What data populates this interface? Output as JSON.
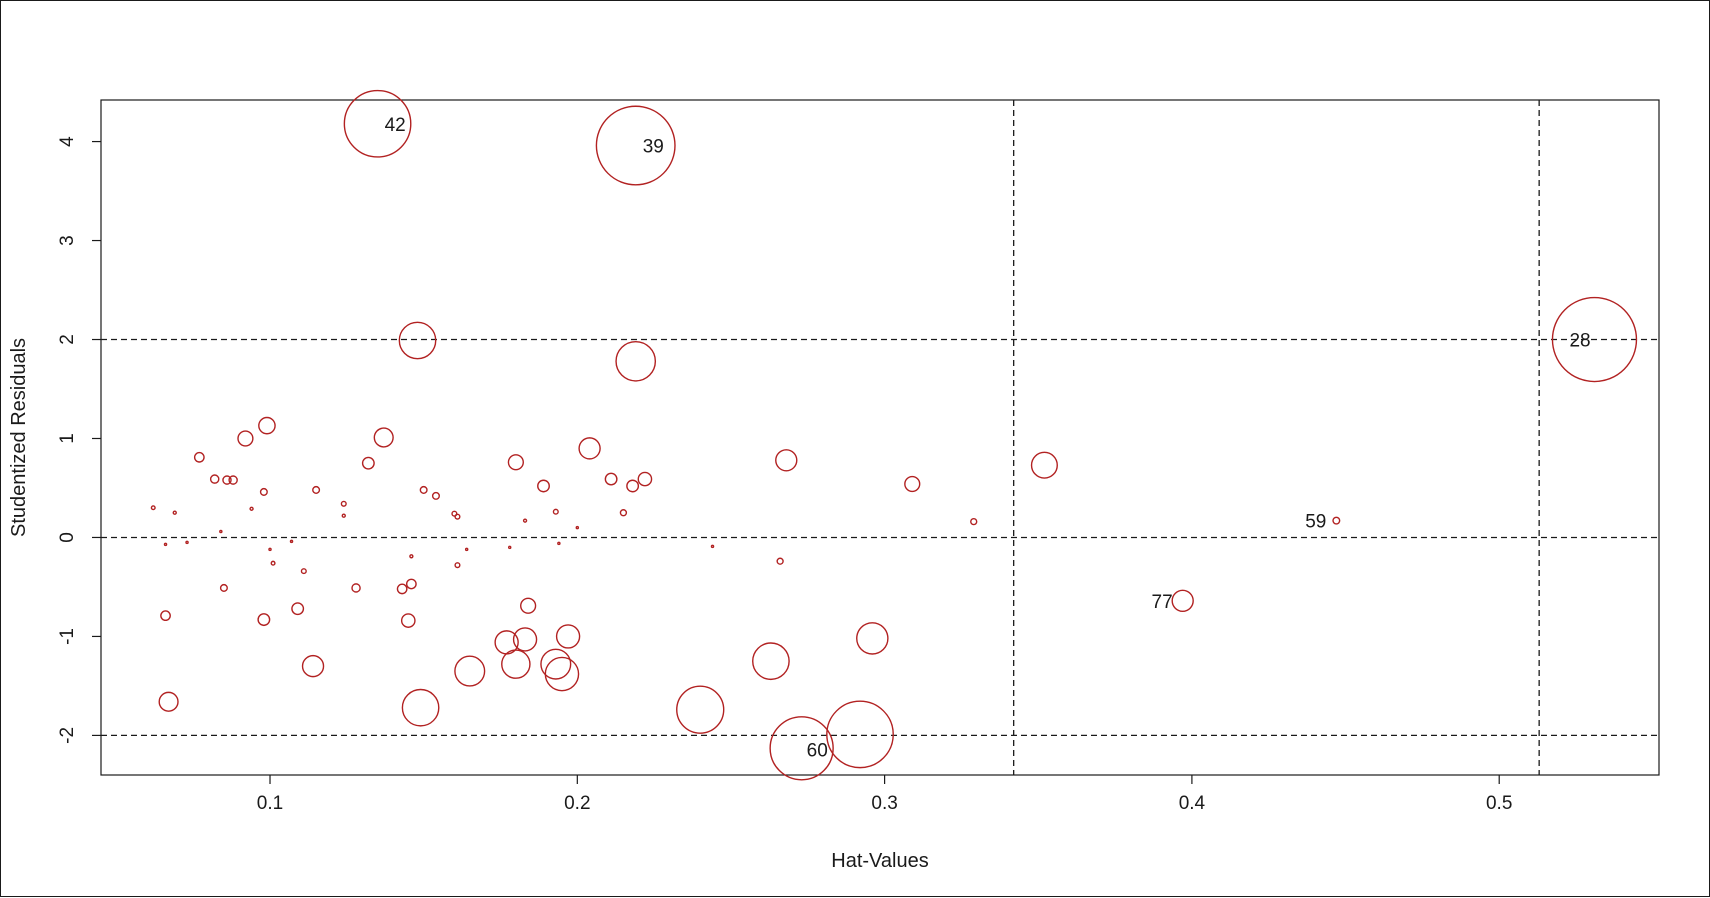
{
  "chart_data": {
    "type": "scatter",
    "title": "",
    "xlabel": "Hat-Values",
    "ylabel": "Studentized Residuals",
    "xlim": [
      0.045,
      0.552
    ],
    "ylim": [
      -2.4,
      4.42
    ],
    "xticks": [
      {
        "value": 0.1,
        "label": "0.1"
      },
      {
        "value": 0.2,
        "label": "0.2"
      },
      {
        "value": 0.3,
        "label": "0.3"
      },
      {
        "value": 0.4,
        "label": "0.4"
      },
      {
        "value": 0.5,
        "label": "0.5"
      }
    ],
    "yticks": [
      {
        "value": -2,
        "label": "-2"
      },
      {
        "value": -1,
        "label": "-1"
      },
      {
        "value": 0,
        "label": "0"
      },
      {
        "value": 1,
        "label": "1"
      },
      {
        "value": 2,
        "label": "2"
      },
      {
        "value": 3,
        "label": "3"
      },
      {
        "value": 4,
        "label": "4"
      }
    ],
    "reference_lines": {
      "horizontal": [
        -2,
        0,
        2
      ],
      "vertical": [
        0.342,
        0.513
      ],
      "style": "dashed"
    },
    "point_color": "#b22222",
    "point_size_meaning": "Cook's distance",
    "points": [
      {
        "x": 0.135,
        "y": 4.18,
        "size": 0.1,
        "label": "42"
      },
      {
        "x": 0.219,
        "y": 3.96,
        "size": 0.14,
        "label": "39"
      },
      {
        "x": 0.531,
        "y": 2.0,
        "size": 0.16,
        "label": "28"
      },
      {
        "x": 0.273,
        "y": -2.13,
        "size": 0.09,
        "label": "60"
      },
      {
        "x": 0.447,
        "y": 0.17,
        "size": 0.001,
        "label": "59"
      },
      {
        "x": 0.397,
        "y": -0.64,
        "size": 0.01,
        "label": "77"
      },
      {
        "x": 0.292,
        "y": -1.99,
        "size": 0.1,
        "label": ""
      },
      {
        "x": 0.24,
        "y": -1.74,
        "size": 0.05,
        "label": ""
      },
      {
        "x": 0.148,
        "y": 1.99,
        "size": 0.03,
        "label": ""
      },
      {
        "x": 0.219,
        "y": 1.78,
        "size": 0.035,
        "label": ""
      },
      {
        "x": 0.149,
        "y": -1.72,
        "size": 0.03,
        "label": ""
      },
      {
        "x": 0.352,
        "y": 0.73,
        "size": 0.015,
        "label": ""
      },
      {
        "x": 0.263,
        "y": -1.25,
        "size": 0.03,
        "label": ""
      },
      {
        "x": 0.296,
        "y": -1.02,
        "size": 0.022,
        "label": ""
      },
      {
        "x": 0.165,
        "y": -1.35,
        "size": 0.02,
        "label": ""
      },
      {
        "x": 0.195,
        "y": -1.38,
        "size": 0.025,
        "label": ""
      },
      {
        "x": 0.193,
        "y": -1.28,
        "size": 0.02,
        "label": ""
      },
      {
        "x": 0.18,
        "y": -1.28,
        "size": 0.018,
        "label": ""
      },
      {
        "x": 0.177,
        "y": -1.06,
        "size": 0.012,
        "label": ""
      },
      {
        "x": 0.183,
        "y": -1.03,
        "size": 0.012,
        "label": ""
      },
      {
        "x": 0.197,
        "y": -1.0,
        "size": 0.012,
        "label": ""
      },
      {
        "x": 0.114,
        "y": -1.3,
        "size": 0.01,
        "label": ""
      },
      {
        "x": 0.067,
        "y": -1.66,
        "size": 0.008,
        "label": ""
      },
      {
        "x": 0.204,
        "y": 0.9,
        "size": 0.01,
        "label": ""
      },
      {
        "x": 0.268,
        "y": 0.78,
        "size": 0.01,
        "label": ""
      },
      {
        "x": 0.137,
        "y": 1.01,
        "size": 0.008,
        "label": ""
      },
      {
        "x": 0.099,
        "y": 1.13,
        "size": 0.006,
        "label": ""
      },
      {
        "x": 0.092,
        "y": 1.0,
        "size": 0.005,
        "label": ""
      },
      {
        "x": 0.18,
        "y": 0.76,
        "size": 0.005,
        "label": ""
      },
      {
        "x": 0.309,
        "y": 0.54,
        "size": 0.005,
        "label": ""
      },
      {
        "x": 0.222,
        "y": 0.59,
        "size": 0.004,
        "label": ""
      },
      {
        "x": 0.211,
        "y": 0.59,
        "size": 0.003,
        "label": ""
      },
      {
        "x": 0.218,
        "y": 0.52,
        "size": 0.003,
        "label": ""
      },
      {
        "x": 0.189,
        "y": 0.52,
        "size": 0.003,
        "label": ""
      },
      {
        "x": 0.132,
        "y": 0.75,
        "size": 0.003,
        "label": ""
      },
      {
        "x": 0.077,
        "y": 0.81,
        "size": 0.002,
        "label": ""
      },
      {
        "x": 0.184,
        "y": -0.69,
        "size": 0.005,
        "label": ""
      },
      {
        "x": 0.145,
        "y": -0.84,
        "size": 0.004,
        "label": ""
      },
      {
        "x": 0.098,
        "y": -0.83,
        "size": 0.003,
        "label": ""
      },
      {
        "x": 0.109,
        "y": -0.72,
        "size": 0.003,
        "label": ""
      },
      {
        "x": 0.066,
        "y": -0.79,
        "size": 0.002,
        "label": ""
      },
      {
        "x": 0.143,
        "y": -0.52,
        "size": 0.002,
        "label": ""
      },
      {
        "x": 0.146,
        "y": -0.47,
        "size": 0.002,
        "label": ""
      },
      {
        "x": 0.128,
        "y": -0.51,
        "size": 0.0015,
        "label": ""
      },
      {
        "x": 0.085,
        "y": -0.51,
        "size": 0.001,
        "label": ""
      },
      {
        "x": 0.082,
        "y": 0.59,
        "size": 0.0015,
        "label": ""
      },
      {
        "x": 0.086,
        "y": 0.58,
        "size": 0.0015,
        "label": ""
      },
      {
        "x": 0.088,
        "y": 0.58,
        "size": 0.0015,
        "label": ""
      },
      {
        "x": 0.098,
        "y": 0.46,
        "size": 0.001,
        "label": ""
      },
      {
        "x": 0.115,
        "y": 0.48,
        "size": 0.001,
        "label": ""
      },
      {
        "x": 0.15,
        "y": 0.48,
        "size": 0.001,
        "label": ""
      },
      {
        "x": 0.154,
        "y": 0.42,
        "size": 0.001,
        "label": ""
      },
      {
        "x": 0.124,
        "y": 0.34,
        "size": 0.0005,
        "label": ""
      },
      {
        "x": 0.16,
        "y": 0.24,
        "size": 0.0005,
        "label": ""
      },
      {
        "x": 0.161,
        "y": 0.21,
        "size": 0.0005,
        "label": ""
      },
      {
        "x": 0.193,
        "y": 0.26,
        "size": 0.0005,
        "label": ""
      },
      {
        "x": 0.215,
        "y": 0.25,
        "size": 0.0008,
        "label": ""
      },
      {
        "x": 0.329,
        "y": 0.16,
        "size": 0.0008,
        "label": ""
      },
      {
        "x": 0.266,
        "y": -0.24,
        "size": 0.0008,
        "label": ""
      },
      {
        "x": 0.161,
        "y": -0.28,
        "size": 0.0005,
        "label": ""
      },
      {
        "x": 0.111,
        "y": -0.34,
        "size": 0.0005,
        "label": ""
      },
      {
        "x": 0.101,
        "y": -0.26,
        "size": 0.0003,
        "label": ""
      },
      {
        "x": 0.062,
        "y": 0.3,
        "size": 0.0003,
        "label": ""
      },
      {
        "x": 0.069,
        "y": 0.25,
        "size": 0.0002,
        "label": ""
      },
      {
        "x": 0.094,
        "y": 0.29,
        "size": 0.0002,
        "label": ""
      },
      {
        "x": 0.124,
        "y": 0.22,
        "size": 0.0002,
        "label": ""
      },
      {
        "x": 0.183,
        "y": 0.17,
        "size": 0.0002,
        "label": ""
      },
      {
        "x": 0.2,
        "y": 0.1,
        "size": 0.0001,
        "label": ""
      },
      {
        "x": 0.146,
        "y": -0.19,
        "size": 0.0002,
        "label": ""
      },
      {
        "x": 0.164,
        "y": -0.12,
        "size": 0.0001,
        "label": ""
      },
      {
        "x": 0.178,
        "y": -0.1,
        "size": 0.0001,
        "label": ""
      },
      {
        "x": 0.194,
        "y": -0.06,
        "size": 0.0001,
        "label": ""
      },
      {
        "x": 0.244,
        "y": -0.09,
        "size": 0.0001,
        "label": ""
      },
      {
        "x": 0.1,
        "y": -0.12,
        "size": 0.0001,
        "label": ""
      },
      {
        "x": 0.066,
        "y": -0.07,
        "size": 0.0001,
        "label": ""
      },
      {
        "x": 0.073,
        "y": -0.05,
        "size": 0.0001,
        "label": ""
      },
      {
        "x": 0.084,
        "y": 0.06,
        "size": 0.0001,
        "label": ""
      },
      {
        "x": 0.107,
        "y": -0.04,
        "size": 0.0001,
        "label": ""
      }
    ]
  }
}
